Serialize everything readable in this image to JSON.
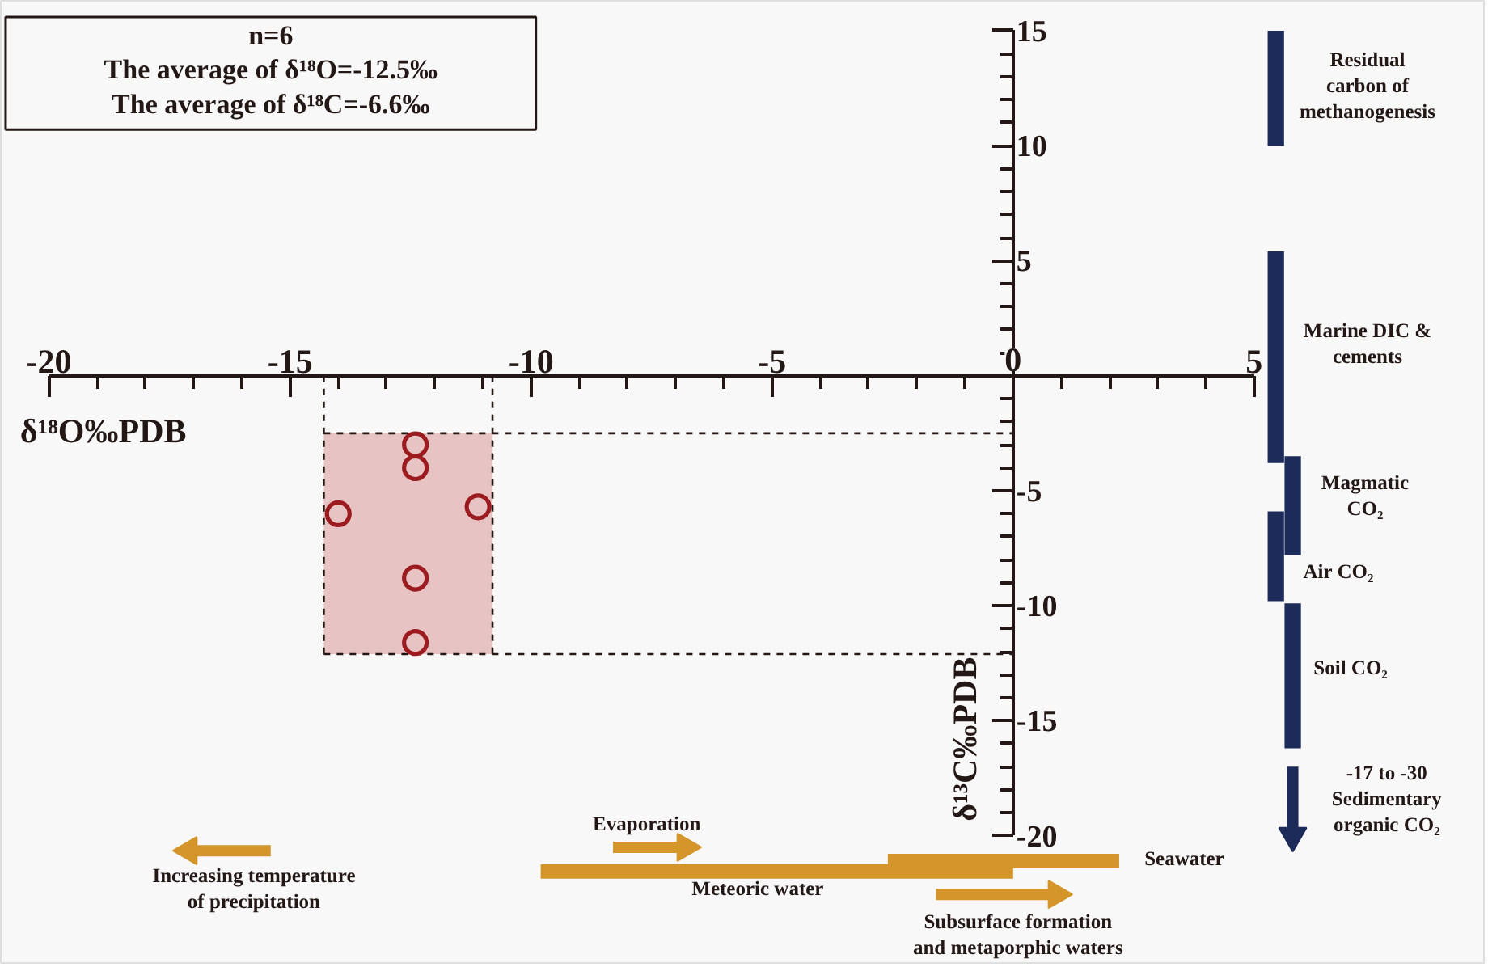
{
  "chart_data": {
    "type": "scatter",
    "xlabel": "δ¹⁸O‰PDB",
    "ylabel": "δ¹³C‰PDB",
    "annotations": [
      "n=6",
      "The average of δ¹⁸O=-12.5‰",
      "The average of δ¹⁸C=-6.6‰",
      "Residual\ncarbon of\nmethanogenesis",
      "Marine DIC &\ncements",
      "Magmatic\nCO₂",
      "Air CO₂",
      "Soil CO₂",
      "-17 to -30\nSedimentary\norganic CO₂",
      "Seawater",
      "Meteoric water",
      "Evaporation",
      "Subsurface formation\nand metaporphic waters",
      "Increasing temperature\nof precipitation"
    ],
    "xlim": [
      -21,
      9.8
    ],
    "ylim": [
      -25.6,
      16.3
    ],
    "xticks": [
      -20,
      {
        "value": -19,
        "label": null
      },
      {
        "value": -18,
        "label": null
      },
      {
        "value": -17,
        "label": null
      },
      {
        "value": -16,
        "label": null
      },
      -15,
      {
        "value": -14,
        "label": null
      },
      {
        "value": -13,
        "label": null
      },
      {
        "value": -12,
        "label": null
      },
      {
        "value": -11,
        "label": null
      },
      -10,
      {
        "value": -9,
        "label": null
      },
      {
        "value": -8,
        "label": null
      },
      {
        "value": -7,
        "label": null
      },
      {
        "value": -6,
        "label": null
      },
      -5,
      {
        "value": -4,
        "label": null
      },
      {
        "value": -3,
        "label": null
      },
      {
        "value": -2,
        "label": null
      },
      {
        "value": -1,
        "label": null
      },
      0,
      {
        "value": 1,
        "label": null
      },
      {
        "value": 2,
        "label": null
      },
      {
        "value": 3,
        "label": null
      },
      {
        "value": 4,
        "label": null
      },
      5
    ],
    "yticks": [
      -20,
      {
        "value": -19,
        "label": null
      },
      {
        "value": -18,
        "label": null
      },
      {
        "value": -17,
        "label": null
      },
      {
        "value": -16,
        "label": null
      },
      -15,
      {
        "value": -14,
        "label": null
      },
      {
        "value": -13,
        "label": null
      },
      {
        "value": -12,
        "label": null
      },
      {
        "value": -11,
        "label": null
      },
      -10,
      {
        "value": -9,
        "label": null
      },
      {
        "value": -8,
        "label": null
      },
      {
        "value": -7,
        "label": null
      },
      {
        "value": -6,
        "label": null
      },
      -5,
      {
        "value": -4,
        "label": null
      },
      {
        "value": -3,
        "label": null
      },
      {
        "value": -2,
        "label": null
      },
      {
        "value": -1,
        "label": null
      },
      {
        "value": 0,
        "label": null
      },
      {
        "value": 1,
        "label": null
      },
      {
        "value": 2,
        "label": null
      },
      {
        "value": 3,
        "label": null
      },
      {
        "value": 4,
        "label": null
      },
      5,
      {
        "value": 6,
        "label": null
      },
      {
        "value": 7,
        "label": null
      },
      {
        "value": 8,
        "label": null
      },
      {
        "value": 9,
        "label": null
      },
      10,
      {
        "value": 11,
        "label": null
      },
      {
        "value": 12,
        "label": null
      },
      {
        "value": 13,
        "label": null
      },
      {
        "value": 14,
        "label": null
      },
      15
    ],
    "marker": "circle",
    "bands": [
      {
        "axis": "x",
        "from": -14.3,
        "to": -10.8,
        "color": "#e8c3c3"
      }
    ],
    "ref_lines": [
      {
        "axis": "x",
        "value": -14.3,
        "line_style": "dashed"
      },
      {
        "axis": "x",
        "value": -10.8,
        "line_style": "dashed"
      },
      {
        "axis": "y",
        "value": -2.5,
        "line_style": "dashed"
      },
      {
        "axis": "y",
        "value": -12.1,
        "line_style": "dashed"
      }
    ],
    "series": [
      {
        "color": "#9b1b1f",
        "x": [
          -12.4,
          -12.4,
          -14.0,
          -11.1,
          -12.4,
          -12.4
        ],
        "values": [
          -3.0,
          -4.0,
          -6.0,
          -5.7,
          -8.8,
          -11.6
        ]
      },
      {
        "type": "bar",
        "color": "#1c2b5a",
        "x": [
          5.45
        ],
        "base": [
          10
        ],
        "values": [
          5
        ]
      },
      {
        "type": "bar",
        "color": "#1c2b5a",
        "x": [
          5.45
        ],
        "base": [
          -3.8
        ],
        "values": [
          9.2
        ]
      },
      {
        "type": "bar",
        "color": "#1c2b5a",
        "x": [
          5.45
        ],
        "base": [
          -9.8
        ],
        "values": [
          3.9
        ]
      },
      {
        "type": "bar",
        "color": "#1c2b5a",
        "x": [
          5.8
        ],
        "base": [
          -7.8
        ],
        "values": [
          4.3
        ]
      },
      {
        "type": "bar",
        "color": "#1c2b5a",
        "x": [
          5.8
        ],
        "base": [
          -16.2
        ],
        "values": [
          6.3
        ]
      },
      {
        "type": "line",
        "marker": "triangle",
        "color": "#1c2b5a",
        "x": [
          5.8,
          5.8
        ],
        "values": [
          -17,
          -20
        ]
      },
      {
        "type": "line",
        "marker": "none",
        "color": "#d4952b",
        "x": [
          -2.6,
          2.2
        ],
        "values": [
          -21.1,
          -21.1
        ]
      },
      {
        "type": "line",
        "marker": "none",
        "color": "#d4952b",
        "x": [
          -9.8,
          0
        ],
        "values": [
          -21.55,
          -21.55
        ]
      },
      {
        "type": "line",
        "marker": "triangle",
        "color": "#d4952b",
        "x": [
          -8.3,
          -6.8
        ],
        "values": [
          -20.5,
          -20.5
        ]
      },
      {
        "type": "line",
        "marker": "triangle",
        "color": "#d4952b",
        "x": [
          -1.6,
          0.9
        ],
        "values": [
          -22.55,
          -22.55
        ]
      },
      {
        "type": "line",
        "marker": "triangle",
        "color": "#d4952b",
        "x": [
          -15.4,
          -17.1
        ],
        "values": [
          -20.65,
          -20.65
        ]
      }
    ]
  }
}
